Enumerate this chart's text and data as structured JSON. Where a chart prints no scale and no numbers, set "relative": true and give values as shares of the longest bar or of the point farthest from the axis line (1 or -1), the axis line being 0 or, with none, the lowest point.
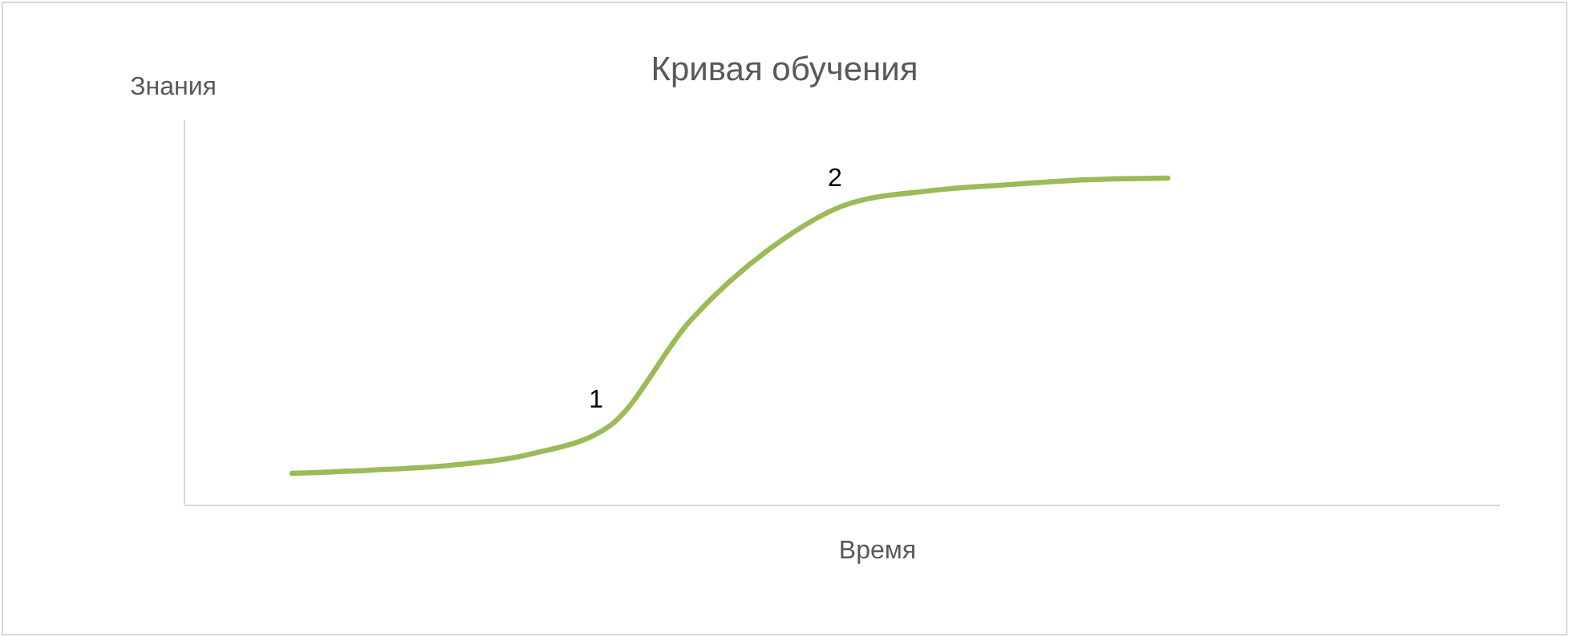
{
  "chart_data": {
    "type": "line",
    "title": "Кривая обучения",
    "xlabel": "Время",
    "ylabel": "Знания",
    "relative": true,
    "categories": [
      null,
      null,
      null,
      null,
      null,
      null,
      null,
      null,
      null,
      null,
      null,
      null
    ],
    "series": [
      {
        "color": "#9bbb59",
        "values": [
          0.098,
          0.108,
          0.123,
          0.157,
          0.245,
          0.564,
          0.784,
          0.922,
          0.961,
          0.98,
          0.995,
          1
        ]
      }
    ],
    "annotations": [
      {
        "text": "1",
        "y": 0.245
      },
      {
        "text": "2",
        "y": 0.922
      }
    ]
  }
}
